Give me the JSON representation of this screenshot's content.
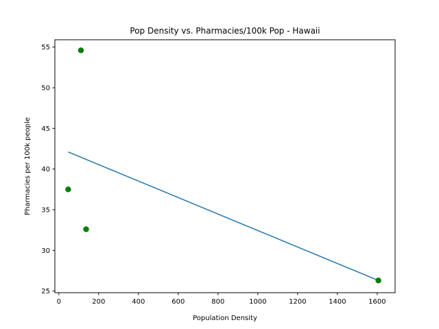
{
  "chart_data": {
    "type": "scatter",
    "title": "Pop Density vs. Pharmacies/100k Pop - Hawaii",
    "xlabel": "Population Density",
    "ylabel": "Pharmacies per 100k people",
    "xlim": [
      -20,
      1690
    ],
    "ylim": [
      24.8,
      55.9
    ],
    "xticks": [
      0,
      200,
      400,
      600,
      800,
      1000,
      1200,
      1400,
      1600
    ],
    "yticks": [
      25,
      30,
      35,
      40,
      45,
      50,
      55
    ],
    "grid": false,
    "points": {
      "x": [
        111,
        47,
        137,
        1606
      ],
      "y": [
        54.6,
        37.5,
        32.6,
        26.3
      ],
      "color": "#008000"
    },
    "trendline": {
      "x": [
        47,
        1606
      ],
      "y": [
        42.1,
        26.3
      ],
      "color": "#1f77b4"
    }
  }
}
